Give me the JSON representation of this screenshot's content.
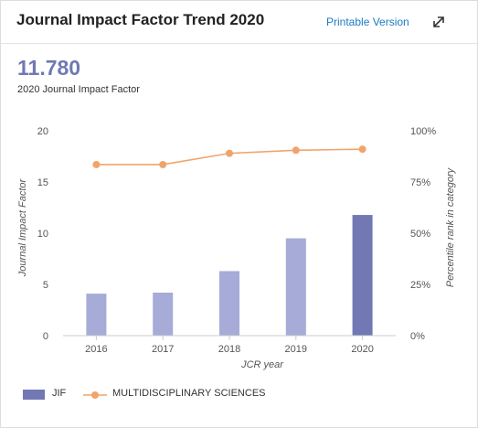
{
  "header": {
    "title": "Journal Impact Factor Trend 2020",
    "printable_label": "Printable Version",
    "expand_icon": "expand-arrows-icon"
  },
  "summary": {
    "value": "11.780",
    "label": "2020 Journal Impact Factor"
  },
  "colors": {
    "bar": "#a6abd8",
    "bar_highlight": "#7178b3",
    "line": "#f0a46a",
    "axis_text": "#555555",
    "grid": "#e4e4e4"
  },
  "chart_data": {
    "type": "bar",
    "categories": [
      "2016",
      "2017",
      "2018",
      "2019",
      "2020"
    ],
    "series": [
      {
        "name": "JIF",
        "type": "bar",
        "axis": "left",
        "values": [
          4.1,
          4.2,
          6.3,
          9.5,
          11.78
        ]
      },
      {
        "name": "MULTIDISCIPLINARY SCIENCES",
        "type": "line",
        "axis": "right",
        "values": [
          83.5,
          83.5,
          89,
          90.5,
          91
        ]
      }
    ],
    "xlabel": "JCR year",
    "ylabel": "Journal Impact Factor",
    "y2label": "Percentile rank in category",
    "ylim": [
      0,
      20
    ],
    "y2lim": [
      0,
      100
    ],
    "yticks": [
      "0",
      "5",
      "10",
      "15",
      "20"
    ],
    "y2ticks": [
      "0%",
      "25%",
      "50%",
      "75%",
      "100%"
    ],
    "grid": false,
    "legend": "bottom-left"
  }
}
